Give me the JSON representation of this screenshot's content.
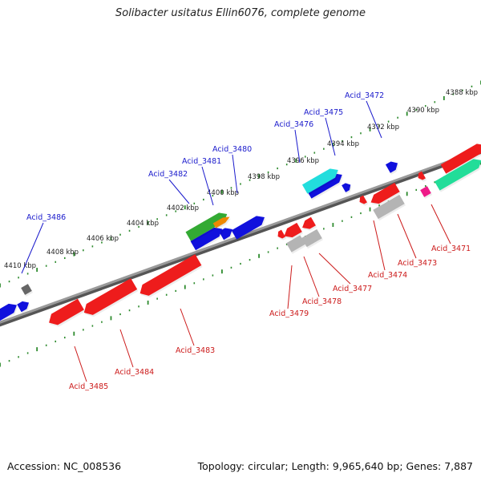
{
  "title": "Solibacter usitatus Ellin6076, complete genome",
  "accession_text": "Accession: NC_008536",
  "topology_text": "Topology: circular; Length: 9,965,640 bp; Genes: 7,887",
  "colors": {
    "backbone": "#8a8a8a",
    "tick": "#2e8b2e",
    "forward_label": "#1a1acc",
    "reverse_label": "#cc1a1a",
    "red": "#ee1c1c",
    "blue": "#1010dd",
    "green": "#33aa33",
    "orange": "#ee8800",
    "cyan": "#22dddd",
    "grey": "#b4b4b4",
    "darkgrey": "#666666",
    "pink": "#ee1a88",
    "teal": "#22dd99"
  },
  "ticks": [
    {
      "label": "4388 kbp"
    },
    {
      "label": "4390 kbp"
    },
    {
      "label": "4392 kbp"
    },
    {
      "label": "4394 kbp"
    },
    {
      "label": "4396 kbp"
    },
    {
      "label": "4398 kbp"
    },
    {
      "label": "4400 kbp"
    },
    {
      "label": "4402 kbp"
    },
    {
      "label": "4404 kbp"
    },
    {
      "label": "4406 kbp"
    },
    {
      "label": "4408 kbp"
    },
    {
      "label": "4410 kbp"
    }
  ],
  "forward_genes": [
    {
      "label": "Acid_3472"
    },
    {
      "label": "Acid_3475"
    },
    {
      "label": "Acid_3476"
    },
    {
      "label": "Acid_3480"
    },
    {
      "label": "Acid_3481"
    },
    {
      "label": "Acid_3482"
    },
    {
      "label": "Acid_3486"
    }
  ],
  "reverse_genes": [
    {
      "label": "Acid_3471"
    },
    {
      "label": "Acid_3473"
    },
    {
      "label": "Acid_3474"
    },
    {
      "label": "Acid_3477"
    },
    {
      "label": "Acid_3478"
    },
    {
      "label": "Acid_3479"
    },
    {
      "label": "Acid_3483"
    },
    {
      "label": "Acid_3484"
    },
    {
      "label": "Acid_3485"
    }
  ]
}
